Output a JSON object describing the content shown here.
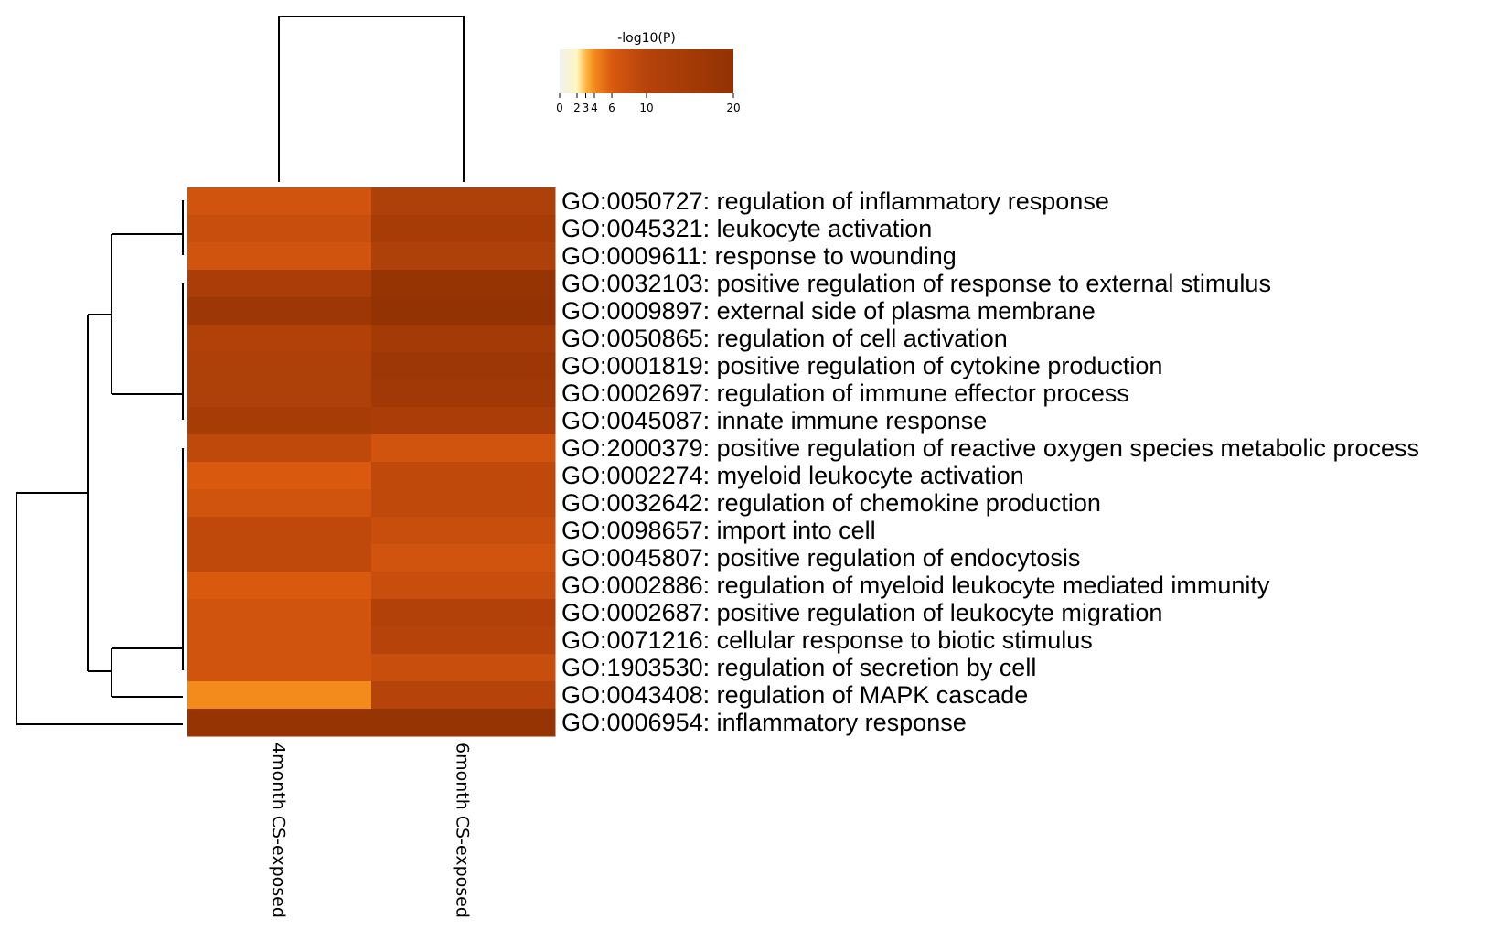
{
  "chart_data": {
    "type": "heatmap",
    "title": "",
    "colorbar": {
      "title": "-log10(P)",
      "ticks": [
        0,
        2,
        3,
        4,
        6,
        10,
        20
      ],
      "range": [
        0,
        20
      ],
      "colors": [
        "#f0f0f0",
        "#fff6c0",
        "#fdb847",
        "#f38a1c",
        "#d9590f",
        "#b5430a",
        "#933203"
      ]
    },
    "columns": [
      "4month CS-exposed",
      "6month CS-exposed"
    ],
    "rows": [
      "GO:0050727: regulation of inflammatory response",
      "GO:0045321: leukocyte activation",
      "GO:0009611: response to wounding",
      "GO:0032103: positive regulation of response to external stimulus",
      "GO:0009897: external side of plasma membrane",
      "GO:0050865: regulation of cell activation",
      "GO:0001819: positive regulation of cytokine production",
      "GO:0002697: regulation of immune effector process",
      "GO:0045087: innate immune response",
      "GO:2000379: positive regulation of reactive oxygen species metabolic process",
      "GO:0002274: myeloid leukocyte activation",
      "GO:0032642: regulation of chemokine production",
      "GO:0098657: import into cell",
      "GO:0045807: positive regulation of endocytosis",
      "GO:0002886: regulation of myeloid leukocyte mediated immunity",
      "GO:0002687: positive regulation of leukocyte migration",
      "GO:0071216: cellular response to biotic stimulus",
      "GO:1903530: regulation of secretion by cell",
      "GO:0043408: regulation of MAPK cascade",
      "GO:0006954: inflammatory response"
    ],
    "values": [
      [
        7,
        12
      ],
      [
        8,
        14
      ],
      [
        7,
        12
      ],
      [
        13,
        19
      ],
      [
        17,
        20
      ],
      [
        11,
        15
      ],
      [
        12,
        17
      ],
      [
        12,
        16
      ],
      [
        14,
        13
      ],
      [
        9,
        7
      ],
      [
        6,
        9
      ],
      [
        7,
        9
      ],
      [
        9,
        8
      ],
      [
        9,
        7
      ],
      [
        6,
        8
      ],
      [
        7,
        11
      ],
      [
        7,
        10
      ],
      [
        7,
        8
      ],
      [
        4,
        10
      ],
      [
        19,
        19
      ]
    ]
  }
}
